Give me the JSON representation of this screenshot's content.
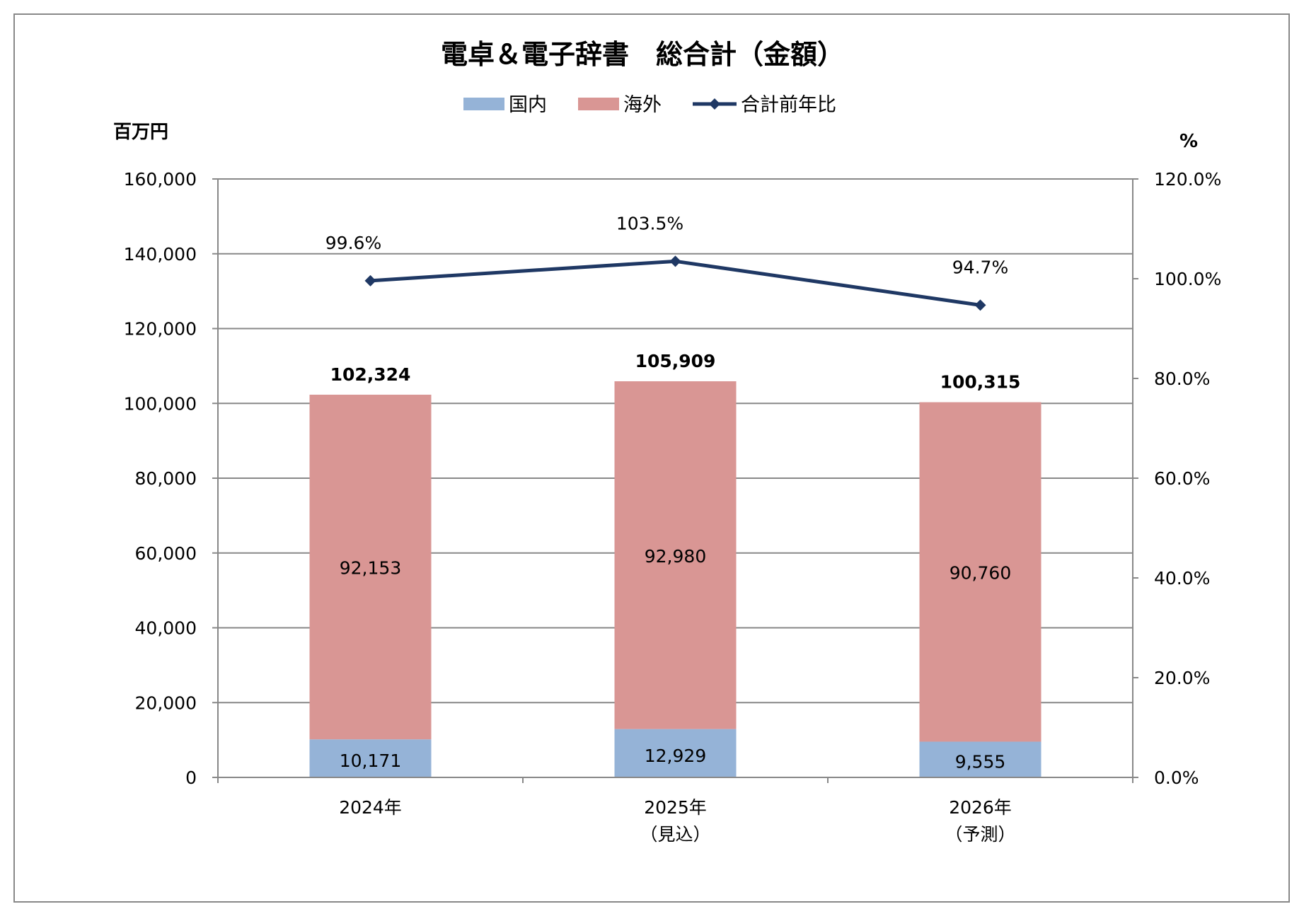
{
  "chart_data": {
    "type": "bar",
    "title": "電卓＆電子辞書　総合計（金額）",
    "ylabel": "百万円",
    "y2label": "%",
    "ylim": [
      0,
      160000
    ],
    "y2lim": [
      0,
      120
    ],
    "yticks": [
      "0",
      "20,000",
      "40,000",
      "60,000",
      "80,000",
      "100,000",
      "120,000",
      "140,000",
      "160,000"
    ],
    "y2ticks": [
      "0.0%",
      "20.0%",
      "40.0%",
      "60.0%",
      "80.0%",
      "100.0%",
      "120.0%"
    ],
    "categories": [
      [
        "2024年"
      ],
      [
        "2025年",
        "（見込）"
      ],
      [
        "2026年",
        "（予測）"
      ]
    ],
    "legend_position": "top",
    "grid": true,
    "series": [
      {
        "name": "国内",
        "kind": "stacked-bar",
        "color": "#95b3d7",
        "values": [
          10171,
          12929,
          9555
        ],
        "labels": [
          "10,171",
          "12,929",
          "9,555"
        ]
      },
      {
        "name": "海外",
        "kind": "stacked-bar",
        "color": "#d99694",
        "values": [
          92153,
          92980,
          90760
        ],
        "labels": [
          "92,153",
          "92,980",
          "90,760"
        ]
      },
      {
        "name": "合計前年比",
        "kind": "line",
        "axis": "right",
        "color": "#1f3864",
        "values": [
          99.6,
          103.5,
          94.7
        ],
        "labels": [
          "99.6%",
          "103.5%",
          "94.7%"
        ]
      }
    ],
    "totals": {
      "values": [
        102324,
        105909,
        100315
      ],
      "labels": [
        "102,324",
        "105,909",
        "100,315"
      ]
    }
  }
}
